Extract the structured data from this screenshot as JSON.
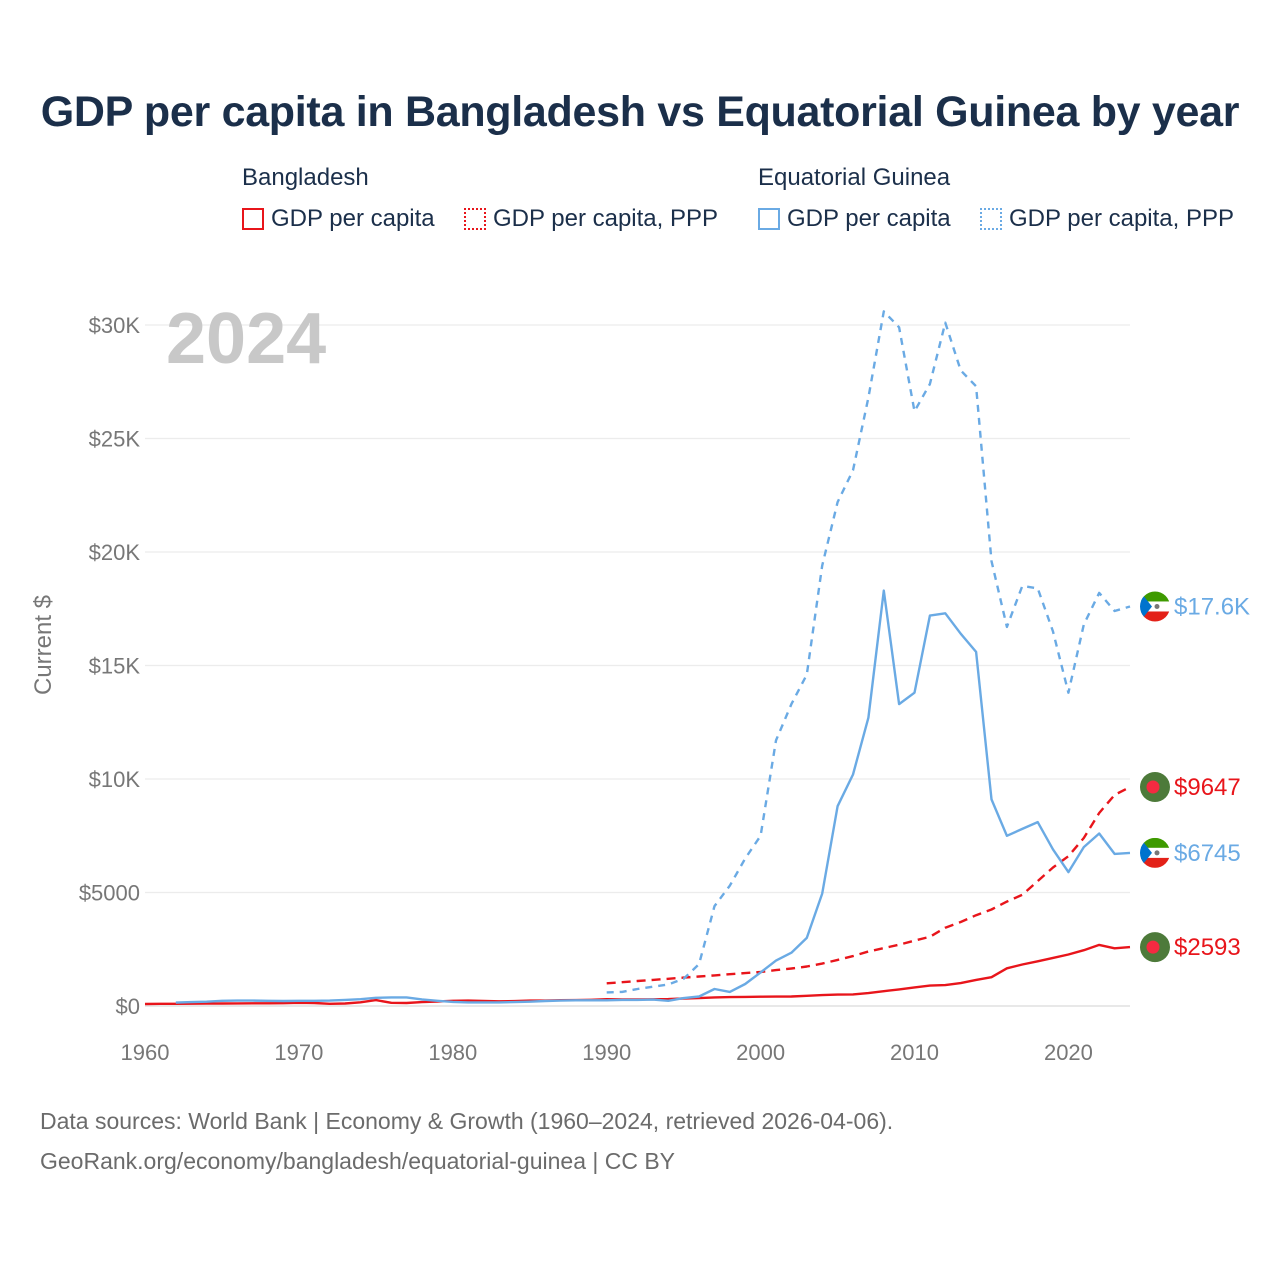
{
  "title": "GDP per capita in Bangladesh vs Equatorial Guinea by year",
  "legend": {
    "bangladesh": {
      "title": "Bangladesh",
      "gdp": "GDP per capita",
      "ppp": "GDP per capita, PPP"
    },
    "equatorial_guinea": {
      "title": "Equatorial Guinea",
      "gdp": "GDP per capita",
      "ppp": "GDP per capita, PPP"
    }
  },
  "colors": {
    "bangladesh": "#e8151b",
    "equatorial_guinea": "#6aaae4",
    "flag_bd_green": "#4d7a3a",
    "flag_bd_red": "#f42a41"
  },
  "year_watermark": "2024",
  "end_labels": {
    "eq_ppp": "$17.6K",
    "bd_ppp": "$9647",
    "eq_gdp": "$6745",
    "bd_gdp": "$2593"
  },
  "footer": {
    "line1": "Data sources: World Bank | Economy & Growth (1960–2024, retrieved 2026-04-06).",
    "line2": "GeoRank.org/economy/bangladesh/equatorial-guinea | CC BY"
  },
  "chart_data": {
    "type": "line",
    "title": "GDP per capita in Bangladesh vs Equatorial Guinea by year",
    "xlabel": "",
    "ylabel": "Current $",
    "xlim": [
      1960,
      2024
    ],
    "ylim": [
      0,
      30000
    ],
    "x_ticks": [
      1960,
      1970,
      1980,
      1990,
      2000,
      2010,
      2020
    ],
    "x_tick_labels": [
      "1960",
      "1970",
      "1980",
      "1990",
      "2000",
      "2010",
      "2020"
    ],
    "y_ticks": [
      0,
      5000,
      10000,
      15000,
      20000,
      25000,
      30000
    ],
    "y_tick_labels": [
      "$0",
      "$5000",
      "$10K",
      "$15K",
      "$20K",
      "$25K",
      "$30K"
    ],
    "grid": true,
    "series": [
      {
        "name": "Bangladesh GDP per capita",
        "country": "Bangladesh",
        "style": "solid",
        "x": [
          1960,
          1961,
          1962,
          1963,
          1964,
          1965,
          1966,
          1967,
          1968,
          1969,
          1970,
          1971,
          1972,
          1973,
          1974,
          1975,
          1976,
          1977,
          1978,
          1979,
          1980,
          1981,
          1982,
          1983,
          1984,
          1985,
          1986,
          1987,
          1988,
          1989,
          1990,
          1991,
          1992,
          1993,
          1994,
          1995,
          1996,
          1997,
          1998,
          1999,
          2000,
          2001,
          2002,
          2003,
          2004,
          2005,
          2006,
          2007,
          2008,
          2009,
          2010,
          2011,
          2012,
          2013,
          2014,
          2015,
          2016,
          2017,
          2018,
          2019,
          2020,
          2021,
          2022,
          2023,
          2024
        ],
        "values": [
          90,
          95,
          95,
          100,
          105,
          110,
          115,
          120,
          120,
          125,
          140,
          130,
          95,
          110,
          165,
          260,
          140,
          130,
          170,
          200,
          230,
          240,
          220,
          205,
          215,
          240,
          240,
          255,
          260,
          275,
          300,
          290,
          290,
          295,
          305,
          330,
          350,
          380,
          390,
          400,
          410,
          415,
          420,
          450,
          480,
          500,
          510,
          570,
          650,
          730,
          820,
          900,
          920,
          1010,
          1150,
          1270,
          1660,
          1830,
          1970,
          2120,
          2270,
          2460,
          2690,
          2540,
          2593
        ]
      },
      {
        "name": "Bangladesh GDP per capita, PPP",
        "country": "Bangladesh",
        "style": "dashed",
        "x": [
          1990,
          1991,
          1992,
          1993,
          1994,
          1995,
          1996,
          1997,
          1998,
          1999,
          2000,
          2001,
          2002,
          2003,
          2004,
          2005,
          2006,
          2007,
          2008,
          2009,
          2010,
          2011,
          2012,
          2013,
          2014,
          2015,
          2016,
          2017,
          2018,
          2019,
          2020,
          2021,
          2022,
          2023,
          2024
        ],
        "values": [
          1000,
          1050,
          1100,
          1150,
          1200,
          1250,
          1300,
          1350,
          1400,
          1450,
          1500,
          1580,
          1650,
          1740,
          1870,
          2030,
          2200,
          2400,
          2550,
          2700,
          2880,
          3050,
          3450,
          3700,
          4000,
          4250,
          4600,
          4900,
          5500,
          6100,
          6600,
          7400,
          8500,
          9300,
          9647
        ]
      },
      {
        "name": "Equatorial Guinea GDP per capita",
        "country": "Equatorial Guinea",
        "style": "solid",
        "x": [
          1962,
          1963,
          1964,
          1965,
          1966,
          1967,
          1968,
          1969,
          1970,
          1971,
          1972,
          1973,
          1974,
          1975,
          1976,
          1977,
          1978,
          1979,
          1980,
          1981,
          1982,
          1983,
          1984,
          1985,
          1986,
          1987,
          1988,
          1989,
          1990,
          1991,
          1992,
          1993,
          1994,
          1995,
          1996,
          1997,
          1998,
          1999,
          2000,
          2001,
          2002,
          2003,
          2004,
          2005,
          2006,
          2007,
          2008,
          2009,
          2010,
          2011,
          2012,
          2013,
          2014,
          2015,
          2016,
          2017,
          2018,
          2019,
          2020,
          2021,
          2022,
          2023,
          2024
        ],
        "values": [
          150,
          170,
          190,
          230,
          240,
          240,
          230,
          220,
          230,
          230,
          240,
          270,
          300,
          360,
          380,
          380,
          290,
          230,
          180,
          160,
          160,
          160,
          170,
          190,
          220,
          240,
          250,
          250,
          250,
          270,
          270,
          280,
          230,
          350,
          420,
          750,
          620,
          970,
          1480,
          2000,
          2350,
          3000,
          4950,
          8800,
          10200,
          12700,
          18300,
          13300,
          13800,
          17200,
          17300,
          16400,
          15600,
          9100,
          7500,
          7800,
          8100,
          6900,
          5900,
          7000,
          7600,
          6700,
          6745
        ]
      },
      {
        "name": "Equatorial Guinea GDP per capita, PPP",
        "country": "Equatorial Guinea",
        "style": "dotted",
        "x": [
          1990,
          1991,
          1992,
          1993,
          1994,
          1995,
          1996,
          1997,
          1998,
          1999,
          2000,
          2001,
          2002,
          2003,
          2004,
          2005,
          2006,
          2007,
          2008,
          2009,
          2010,
          2011,
          2012,
          2013,
          2014,
          2015,
          2016,
          2017,
          2018,
          2019,
          2020,
          2021,
          2022,
          2023,
          2024
        ],
        "values": [
          600,
          620,
          750,
          850,
          950,
          1200,
          1850,
          4400,
          5300,
          6500,
          7500,
          11700,
          13300,
          14600,
          19400,
          22200,
          23600,
          26800,
          30600,
          29900,
          26200,
          27400,
          30100,
          28000,
          27300,
          19600,
          16700,
          18500,
          18400,
          16500,
          13800,
          16800,
          18200,
          17400,
          17600
        ]
      }
    ]
  }
}
